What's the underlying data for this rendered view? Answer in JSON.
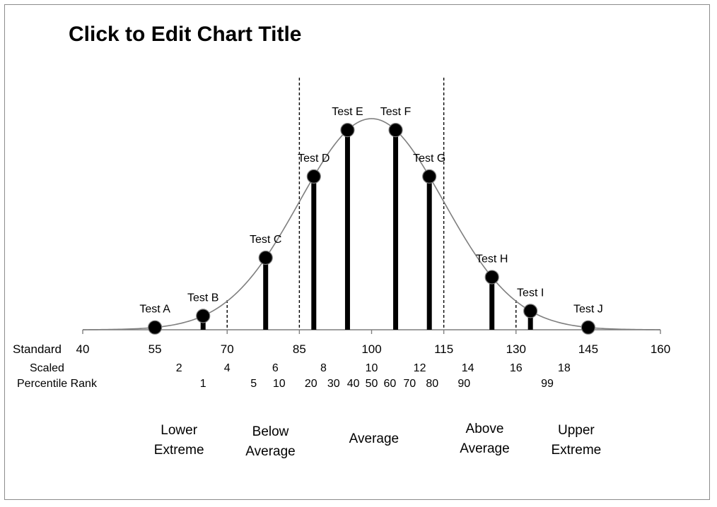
{
  "chart_data": {
    "type": "line",
    "title": "Click to Edit Chart Title",
    "curve": "normal",
    "curve_mean": 100,
    "curve_sd": 15,
    "xlim": [
      40,
      160
    ],
    "scale_rows": [
      {
        "label": "Standard",
        "ticks": [
          {
            "x": 40,
            "text": "40"
          },
          {
            "x": 55,
            "text": "55"
          },
          {
            "x": 70,
            "text": "70"
          },
          {
            "x": 85,
            "text": "85"
          },
          {
            "x": 100,
            "text": "100"
          },
          {
            "x": 115,
            "text": "115"
          },
          {
            "x": 130,
            "text": "130"
          },
          {
            "x": 145,
            "text": "145"
          },
          {
            "x": 160,
            "text": "160"
          }
        ]
      },
      {
        "label": "Scaled",
        "ticks": [
          {
            "x": 60,
            "text": "2"
          },
          {
            "x": 70,
            "text": "4"
          },
          {
            "x": 80,
            "text": "6"
          },
          {
            "x": 90,
            "text": "8"
          },
          {
            "x": 100,
            "text": "10"
          },
          {
            "x": 110,
            "text": "12"
          },
          {
            "x": 120,
            "text": "14"
          },
          {
            "x": 130,
            "text": "16"
          },
          {
            "x": 140,
            "text": "18"
          }
        ]
      },
      {
        "label": "Percentile Rank",
        "ticks": [
          {
            "x": 65,
            "text": "1"
          },
          {
            "x": 75.5,
            "text": "5"
          },
          {
            "x": 80.8,
            "text": "10"
          },
          {
            "x": 87.4,
            "text": "20"
          },
          {
            "x": 92.1,
            "text": "30"
          },
          {
            "x": 96.2,
            "text": "40"
          },
          {
            "x": 100,
            "text": "50"
          },
          {
            "x": 103.8,
            "text": "60"
          },
          {
            "x": 107.9,
            "text": "70"
          },
          {
            "x": 112.6,
            "text": "80"
          },
          {
            "x": 119.2,
            "text": "90"
          },
          {
            "x": 136.5,
            "text": "99"
          }
        ]
      }
    ],
    "points": [
      {
        "name": "Test A",
        "x": 55
      },
      {
        "name": "Test B",
        "x": 65
      },
      {
        "name": "Test C",
        "x": 78
      },
      {
        "name": "Test D",
        "x": 88
      },
      {
        "name": "Test E",
        "x": 95
      },
      {
        "name": "Test F",
        "x": 105
      },
      {
        "name": "Test G",
        "x": 112
      },
      {
        "name": "Test H",
        "x": 125
      },
      {
        "name": "Test I",
        "x": 133
      },
      {
        "name": "Test J",
        "x": 145
      }
    ],
    "dividers": [
      70,
      85,
      115,
      130
    ],
    "categories": [
      {
        "lines": [
          "Lower",
          "Extreme"
        ],
        "x": 60
      },
      {
        "lines": [
          "Below",
          "Average"
        ],
        "x": 79
      },
      {
        "lines": [
          "Average"
        ],
        "x": 100.5
      },
      {
        "lines": [
          "Above",
          "Average"
        ],
        "x": 123.5
      },
      {
        "lines": [
          "Upper",
          "Extreme"
        ],
        "x": 142.5
      }
    ],
    "colors": {
      "curve": "#7f7f7f",
      "marker": "#000000",
      "axis": "#7f7f7f"
    }
  }
}
